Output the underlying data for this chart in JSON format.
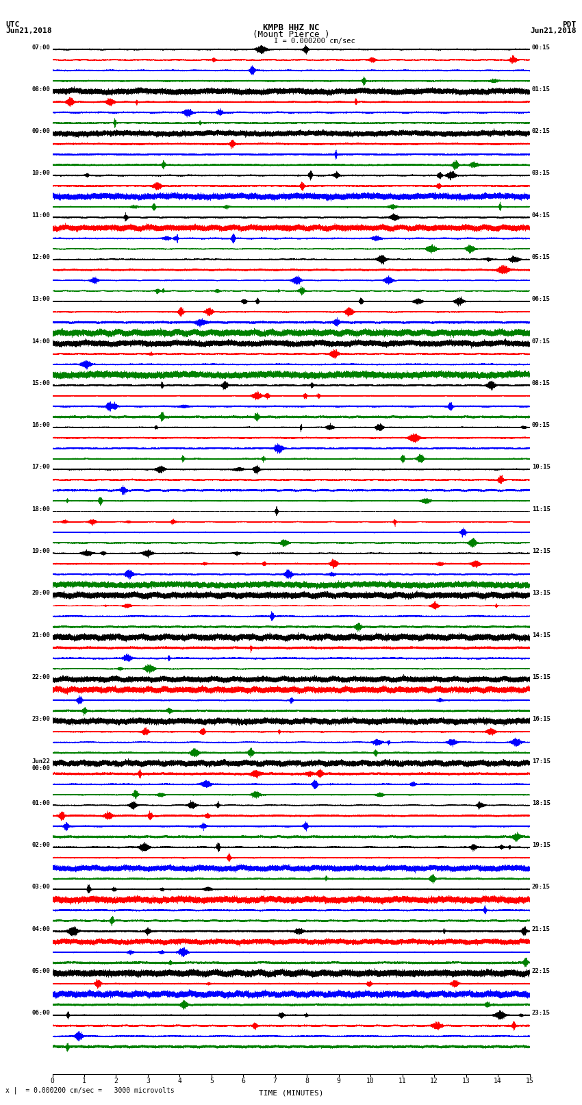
{
  "title_line1": "KMPB HHZ NC",
  "title_line2": "(Mount Pierce )",
  "scale_label": "I = 0.000200 cm/sec",
  "utc_label1": "UTC",
  "utc_label2": "Jun21,2018",
  "pdt_label1": "PDT",
  "pdt_label2": "Jun21,2018",
  "xlabel": "TIME (MINUTES)",
  "footer": "= 0.000200 cm/sec =   3000 microvolts",
  "footer_prefix": "x |",
  "left_times": [
    "07:00",
    "08:00",
    "09:00",
    "10:00",
    "11:00",
    "12:00",
    "13:00",
    "14:00",
    "15:00",
    "16:00",
    "17:00",
    "18:00",
    "19:00",
    "20:00",
    "21:00",
    "22:00",
    "23:00",
    "Jun22\n00:00",
    "01:00",
    "02:00",
    "03:00",
    "04:00",
    "05:00",
    "06:00"
  ],
  "right_times": [
    "00:15",
    "01:15",
    "02:15",
    "03:15",
    "04:15",
    "05:15",
    "06:15",
    "07:15",
    "08:15",
    "09:15",
    "10:15",
    "11:15",
    "12:15",
    "13:15",
    "14:15",
    "15:15",
    "16:15",
    "17:15",
    "18:15",
    "19:15",
    "20:15",
    "21:15",
    "22:15",
    "23:15"
  ],
  "colors": [
    "black",
    "red",
    "blue",
    "green"
  ],
  "bg_color": "#ffffff",
  "num_rows": 24,
  "traces_per_row": 4,
  "minutes": 15,
  "sample_rate": 50,
  "fig_width": 8.5,
  "fig_height": 16.13,
  "dpi": 100,
  "high_amp_rows": [
    18,
    19,
    20,
    21
  ],
  "medium_amp_rows": [
    11,
    12,
    13,
    22,
    23
  ]
}
